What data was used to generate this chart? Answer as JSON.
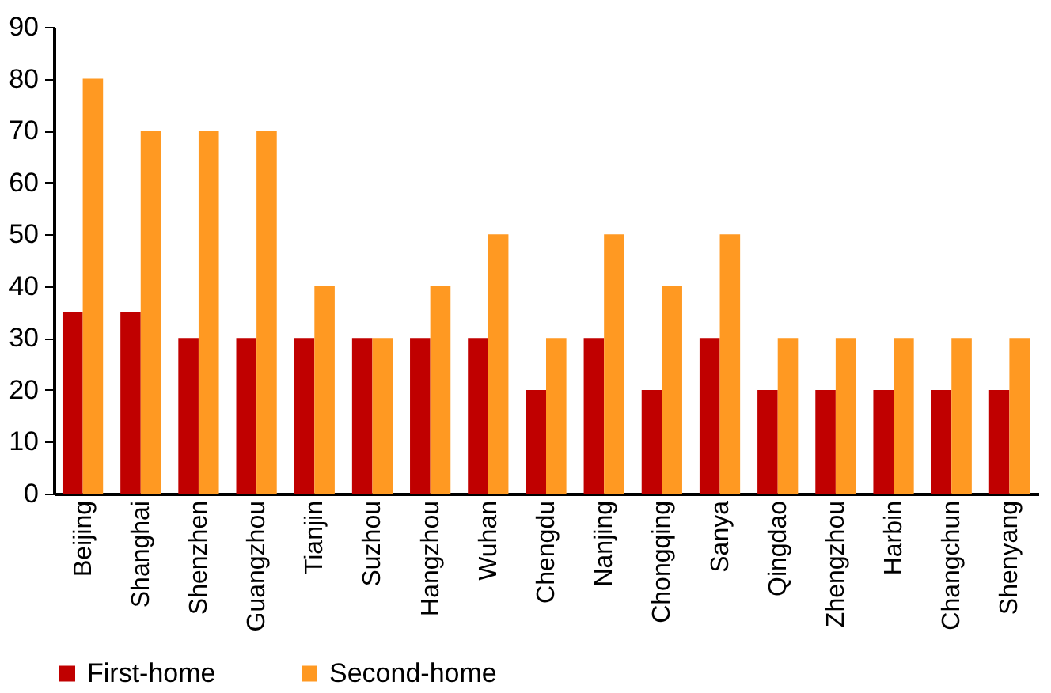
{
  "chart_data": {
    "type": "bar",
    "categories": [
      "Beijing",
      "Shanghai",
      "Shenzhen",
      "Guangzhou",
      "Tianjin",
      "Suzhou",
      "Hangzhou",
      "Wuhan",
      "Chengdu",
      "Nanjing",
      "Chongqing",
      "Sanya",
      "Qingdao",
      "Zhengzhou",
      "Harbin",
      "Changchun",
      "Shenyang"
    ],
    "series": [
      {
        "name": "First-home",
        "color": "#c00000",
        "values": [
          35,
          35,
          30,
          30,
          30,
          30,
          30,
          30,
          20,
          30,
          20,
          30,
          20,
          20,
          20,
          20,
          20
        ]
      },
      {
        "name": "Second-home",
        "color": "#ff9922",
        "values": [
          80,
          70,
          70,
          70,
          40,
          30,
          40,
          50,
          30,
          50,
          40,
          50,
          30,
          30,
          30,
          30,
          30
        ]
      }
    ],
    "ylim": [
      0,
      90
    ],
    "yticks": [
      0,
      10,
      20,
      30,
      40,
      50,
      60,
      70,
      80,
      90
    ],
    "grid": false,
    "legend": "bottom"
  }
}
